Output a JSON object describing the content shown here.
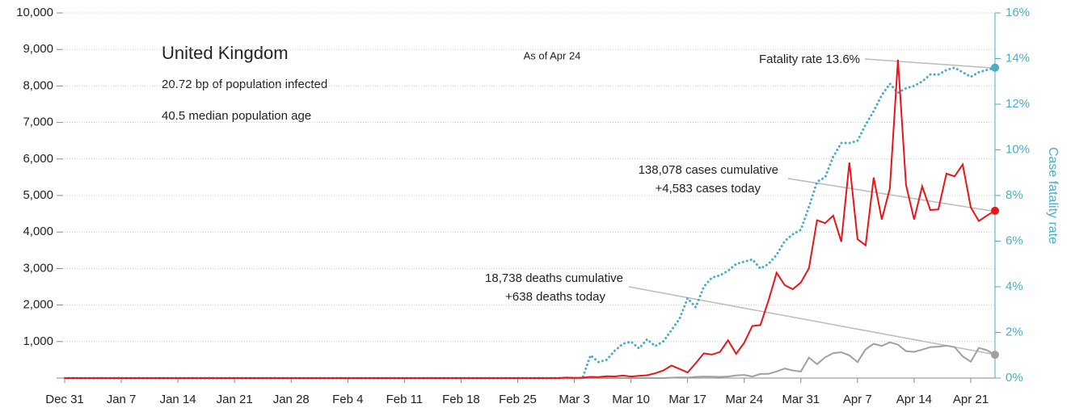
{
  "chart_data": {
    "type": "line",
    "title": "United Kingdom",
    "subtitle": [
      "20.72 bp of population infected",
      "40.5 median population age"
    ],
    "note": "As of Apr 24",
    "annotations": [
      "Fatality rate 13.6%",
      "138,078 cases cumulative",
      "+4,583 cases today",
      "18,738 deaths cumulative",
      "+638 deaths today"
    ],
    "y2label": "Case fatality rate",
    "grid": true,
    "categories": [
      "Dec 31",
      null,
      null,
      null,
      null,
      null,
      null,
      "Jan 7",
      null,
      null,
      null,
      null,
      null,
      null,
      "Jan 14",
      null,
      null,
      null,
      null,
      null,
      null,
      "Jan 21",
      null,
      null,
      null,
      null,
      null,
      null,
      "Jan 28",
      null,
      null,
      null,
      null,
      null,
      null,
      "Feb 4",
      null,
      null,
      null,
      null,
      null,
      null,
      "Feb 11",
      null,
      null,
      null,
      null,
      null,
      null,
      "Feb 18",
      null,
      null,
      null,
      null,
      null,
      null,
      "Feb 25",
      null,
      null,
      null,
      null,
      null,
      null,
      "Mar 3",
      null,
      null,
      null,
      null,
      null,
      null,
      "Mar 10",
      null,
      null,
      null,
      null,
      null,
      null,
      "Mar 17",
      null,
      null,
      null,
      null,
      null,
      null,
      "Mar 24",
      null,
      null,
      null,
      null,
      null,
      null,
      "Mar 31",
      null,
      null,
      null,
      null,
      null,
      null,
      "Apr 7",
      null,
      null,
      null,
      null,
      null,
      null,
      "Apr 14",
      null,
      null,
      null,
      null,
      null,
      null,
      "Apr 21",
      null,
      null,
      null
    ],
    "ylim": [
      0,
      10000
    ],
    "yticks": [
      {
        "value": 1000,
        "label": "1,000"
      },
      {
        "value": 2000,
        "label": "2,000"
      },
      {
        "value": 3000,
        "label": "3,000"
      },
      {
        "value": 4000,
        "label": "4,000"
      },
      {
        "value": 5000,
        "label": "5,000"
      },
      {
        "value": 6000,
        "label": "6,000"
      },
      {
        "value": 7000,
        "label": "7,000"
      },
      {
        "value": 8000,
        "label": "8,000"
      },
      {
        "value": 9000,
        "label": "9,000"
      },
      {
        "value": 10000,
        "label": "10,000"
      }
    ],
    "y2lim": [
      0,
      16
    ],
    "y2ticks": [
      {
        "value": 0,
        "label": "0%"
      },
      {
        "value": 2,
        "label": "2%"
      },
      {
        "value": 4,
        "label": "4%"
      },
      {
        "value": 6,
        "label": "6%"
      },
      {
        "value": 8,
        "label": "8%"
      },
      {
        "value": 10,
        "label": "10%"
      },
      {
        "value": 12,
        "label": "12%"
      },
      {
        "value": 14,
        "label": "14%"
      },
      {
        "value": 16,
        "label": "16%"
      }
    ],
    "series": [
      {
        "color": "#e8141a",
        "values": [
          0,
          0,
          0,
          0,
          0,
          0,
          0,
          0,
          0,
          0,
          0,
          0,
          0,
          0,
          0,
          0,
          0,
          0,
          0,
          0,
          0,
          0,
          0,
          0,
          0,
          0,
          0,
          0,
          0,
          0,
          0,
          0,
          0,
          0,
          0,
          0,
          0,
          0,
          0,
          0,
          0,
          0,
          0,
          0,
          0,
          0,
          0,
          0,
          0,
          0,
          0,
          0,
          0,
          0,
          0,
          0,
          0,
          0,
          0,
          0,
          0,
          0,
          13,
          4,
          11,
          34,
          29,
          48,
          45,
          69,
          43,
          62,
          77,
          130,
          208,
          342,
          251,
          152,
          407,
          676,
          643,
          714,
          1035,
          665,
          967,
          1427,
          1452,
          2129,
          2885,
          2546,
          2433,
          2619,
          3009,
          4324,
          4244,
          4450,
          3735,
          5903,
          3802,
          3634,
          5491,
          4344,
          5195,
          8719,
          5288,
          4342,
          5252,
          4605,
          4617,
          5599,
          5525,
          5850,
          4676,
          4301,
          4451,
          4583
        ]
      },
      {
        "color": "#a0a0a0",
        "values": [
          0,
          0,
          0,
          0,
          0,
          0,
          0,
          0,
          0,
          0,
          0,
          0,
          0,
          0,
          0,
          0,
          0,
          0,
          0,
          0,
          0,
          0,
          0,
          0,
          0,
          0,
          0,
          0,
          0,
          0,
          0,
          0,
          0,
          0,
          0,
          0,
          0,
          0,
          0,
          0,
          0,
          0,
          0,
          0,
          0,
          0,
          0,
          0,
          0,
          0,
          0,
          0,
          0,
          0,
          0,
          0,
          0,
          0,
          0,
          0,
          0,
          0,
          0,
          0,
          0,
          0,
          0,
          0,
          0,
          0,
          0,
          0,
          0,
          0,
          1,
          10,
          20,
          14,
          33,
          43,
          40,
          33,
          41,
          74,
          87,
          43,
          113,
          115,
          181,
          260,
          209,
          180,
          563,
          381,
          569,
          684,
          708,
          621,
          439,
          786,
          938,
          881,
          980,
          917,
          737,
          717,
          778,
          847,
          861,
          888,
          847,
          596,
          449,
          828,
          763,
          638
        ]
      },
      {
        "color": "#4aaec6",
        "axis": "y2",
        "style": "dotted",
        "values": [
          0,
          0,
          0,
          0,
          0,
          0,
          0,
          0,
          0,
          0,
          0,
          0,
          0,
          0,
          0,
          0,
          0,
          0,
          0,
          0,
          0,
          0,
          0,
          0,
          0,
          0,
          0,
          0,
          0,
          0,
          0,
          0,
          0,
          0,
          0,
          0,
          0,
          0,
          0,
          0,
          0,
          0,
          0,
          0,
          0,
          0,
          0,
          0,
          0,
          0,
          0,
          0,
          0,
          0,
          0,
          0,
          0,
          0,
          0,
          0,
          0,
          0,
          0,
          0,
          0,
          1.0,
          0.7,
          0.8,
          1.2,
          1.5,
          1.6,
          1.3,
          1.7,
          1.4,
          1.6,
          2.1,
          2.6,
          3.5,
          3.1,
          4.0,
          4.4,
          4.5,
          4.7,
          5.0,
          5.1,
          5.2,
          4.8,
          5.0,
          5.4,
          6.0,
          6.3,
          6.5,
          7.5,
          8.6,
          8.8,
          9.7,
          10.3,
          10.3,
          10.4,
          11.1,
          11.7,
          12.4,
          12.9,
          12.5,
          12.7,
          12.8,
          13.0,
          13.3,
          13.3,
          13.5,
          13.6,
          13.4,
          13.2,
          13.4,
          13.5,
          13.6
        ]
      }
    ]
  }
}
